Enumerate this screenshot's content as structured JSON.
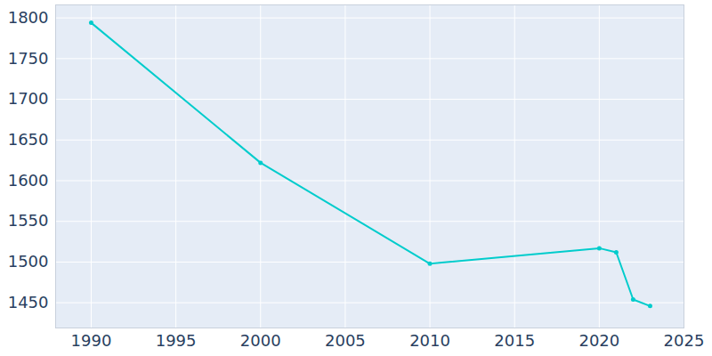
{
  "chart_data": {
    "type": "line",
    "x": [
      1990,
      2000,
      2010,
      2020,
      2021,
      2022,
      2023
    ],
    "values": [
      1794,
      1622,
      1498,
      1517,
      1512,
      1454,
      1446
    ],
    "color": "#00cccc",
    "marker": "circle",
    "xlim": [
      1987.9,
      2025
    ],
    "xticks": [
      1990,
      1995,
      2000,
      2005,
      2010,
      2015,
      2020,
      2025
    ],
    "ylim": [
      1419,
      1816
    ],
    "yticks": [
      1450,
      1500,
      1550,
      1600,
      1650,
      1700,
      1750,
      1800
    ],
    "grid": true
  }
}
